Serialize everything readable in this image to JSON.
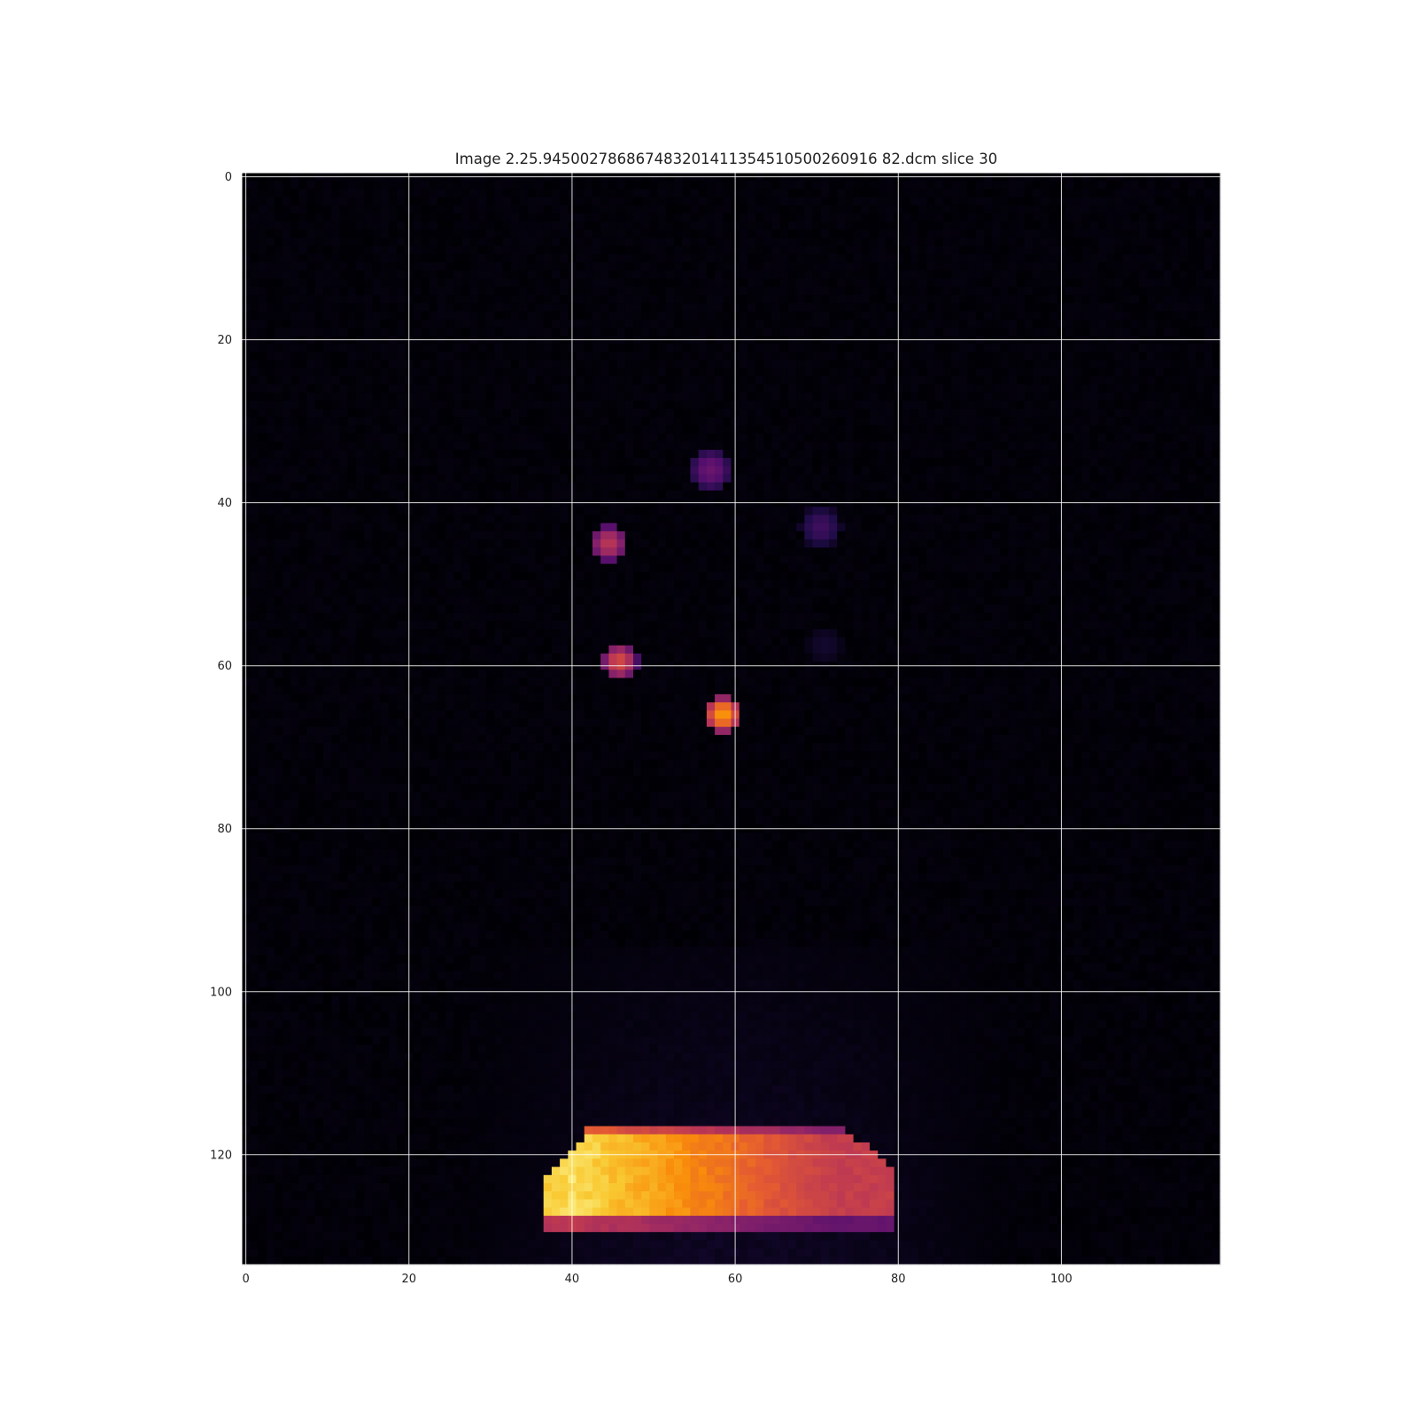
{
  "chart_data": {
    "type": "heatmap",
    "title": "Image 2.25.945002786867483201411354510500260916 82.dcm slice 30",
    "xlabel": "",
    "ylabel": "",
    "image_shape": [
      134,
      120
    ],
    "xlim": [
      -0.5,
      119.5
    ],
    "ylim": [
      133.5,
      -0.5
    ],
    "colormap": "inferno",
    "grid": true,
    "x_ticks": [
      0,
      20,
      40,
      60,
      80,
      100
    ],
    "y_ticks": [
      0,
      20,
      40,
      60,
      80,
      100,
      120
    ],
    "x_tick_labels": [
      "0",
      "20",
      "40",
      "60",
      "80",
      "100"
    ],
    "y_tick_labels": [
      "0",
      "20",
      "40",
      "60",
      "80",
      "100",
      "120"
    ],
    "background_value": 0.02,
    "hot_spots": [
      {
        "x": 57,
        "y": 36,
        "radius": 2.6,
        "peak": 0.3
      },
      {
        "x": 70.5,
        "y": 43,
        "radius": 2.5,
        "peak": 0.2
      },
      {
        "x": 44.5,
        "y": 45,
        "radius": 2.4,
        "peak": 0.5
      },
      {
        "x": 45.8,
        "y": 59.5,
        "radius": 2.3,
        "peak": 0.58
      },
      {
        "x": 71,
        "y": 57.5,
        "radius": 2.2,
        "peak": 0.08
      },
      {
        "x": 58.5,
        "y": 66,
        "radius": 2.4,
        "peak": 0.78
      }
    ],
    "faint_glow": {
      "x_range": [
        25,
        95
      ],
      "y_range": [
        95,
        133
      ],
      "peak": 0.07
    },
    "bright_region": {
      "y_range": [
        117,
        129
      ],
      "x_range": [
        37,
        79.5
      ],
      "peak_x": 40,
      "peak": 0.96,
      "edge_value": 0.55
    }
  }
}
